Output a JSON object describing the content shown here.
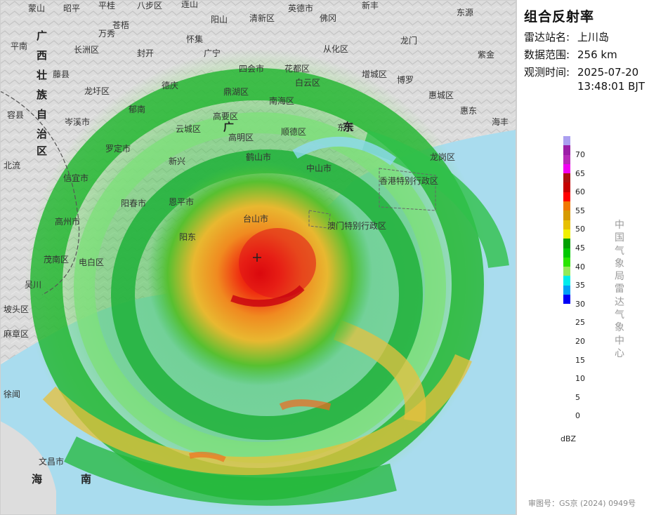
{
  "panel": {
    "title": "组合反射率",
    "station_label": "雷达站名:",
    "station": "上川岛",
    "range_label": "数据范围:",
    "range": "256 km",
    "time_label": "观测时间:",
    "time_date": "2025-07-20",
    "time_clock": "13:48:01 BJT",
    "org_chars": [
      "中",
      "国",
      "气",
      "象",
      "局",
      "雷",
      "达",
      "气",
      "象",
      "中",
      "心"
    ],
    "unit": "dBZ",
    "approval": "审图号：GS京 (2024) 0949号"
  },
  "legend": {
    "ticks": [
      "70",
      "65",
      "60",
      "55",
      "50",
      "45",
      "40",
      "35",
      "30",
      "25",
      "20",
      "15",
      "10",
      "5",
      "0"
    ],
    "colors": [
      "#ab9ff0",
      "#9c1ea7",
      "#b72ab8",
      "#f200f2",
      "#ae1010",
      "#c60000",
      "#ff0000",
      "#f07800",
      "#d69a00",
      "#e7c000",
      "#f0f000",
      "#00a000",
      "#00c800",
      "#29e500",
      "#94e95a",
      "#00ecec",
      "#00a0f6",
      "#0000f6"
    ]
  },
  "map": {
    "labels": [
      {
        "t": "蒙山"
      },
      {
        "t": "昭平"
      },
      {
        "t": "平桂"
      },
      {
        "t": "八步区"
      },
      {
        "t": "连山"
      },
      {
        "t": "阳山"
      },
      {
        "t": "清新区"
      },
      {
        "t": "英德市"
      },
      {
        "t": "新丰"
      },
      {
        "t": "东源"
      },
      {
        "t": "苍梧"
      },
      {
        "t": "长洲区"
      },
      {
        "t": "万秀"
      },
      {
        "t": "封开"
      },
      {
        "t": "怀集"
      },
      {
        "t": "广宁"
      },
      {
        "t": "佛冈"
      },
      {
        "t": "从化区"
      },
      {
        "t": "龙门"
      },
      {
        "t": "紫金"
      },
      {
        "t": "平南"
      },
      {
        "t": "藤县"
      },
      {
        "t": "龙圩区"
      },
      {
        "t": "德庆"
      },
      {
        "t": "四会市"
      },
      {
        "t": "花都区"
      },
      {
        "t": "增城区"
      },
      {
        "t": "博罗"
      },
      {
        "t": "惠城区"
      },
      {
        "t": "惠东"
      },
      {
        "t": "容县"
      },
      {
        "t": "岑溪市"
      },
      {
        "t": "郁南"
      },
      {
        "t": "云城区"
      },
      {
        "t": "高要区"
      },
      {
        "t": "鼎湖区"
      },
      {
        "t": "南海区"
      },
      {
        "t": "白云区"
      },
      {
        "t": "海丰"
      },
      {
        "t": "北流"
      },
      {
        "t": "罗定市"
      },
      {
        "t": "高明区"
      },
      {
        "t": "顺德区"
      },
      {
        "t": "东莞"
      },
      {
        "t": "龙岗区"
      },
      {
        "t": "信宜市"
      },
      {
        "t": "新兴"
      },
      {
        "t": "鹤山市"
      },
      {
        "t": "中山市"
      },
      {
        "t": "香港特别行政区"
      },
      {
        "t": "高州市"
      },
      {
        "t": "阳春市"
      },
      {
        "t": "恩平市"
      },
      {
        "t": "台山市"
      },
      {
        "t": "澳门特别行政区"
      },
      {
        "t": "茂南区"
      },
      {
        "t": "电白区"
      },
      {
        "t": "阳东"
      },
      {
        "t": "麻章区"
      },
      {
        "t": "吴川"
      },
      {
        "t": "坡头区"
      },
      {
        "t": "徐闻"
      },
      {
        "t": "文昌市"
      },
      {
        "t": "海"
      },
      {
        "t": "南"
      }
    ],
    "province_chars": [
      "广",
      "西",
      "壮",
      "族",
      "自",
      "治",
      "区",
      "广",
      "东"
    ]
  }
}
